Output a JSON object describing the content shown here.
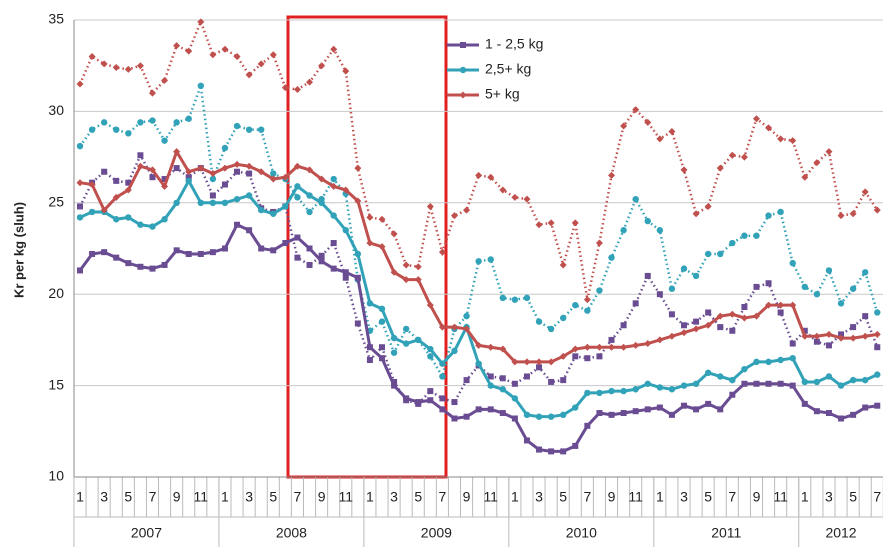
{
  "chart_data": {
    "type": "line",
    "y_label": "Kr per kg (sluh)",
    "categories": [
      "1",
      null,
      "3",
      null,
      "5",
      null,
      "7",
      null,
      "9",
      null,
      "11",
      null,
      "1",
      null,
      "3",
      null,
      "5",
      null,
      "7",
      null,
      "9",
      null,
      "11",
      null,
      "1",
      null,
      "3",
      null,
      "5",
      null,
      "7",
      null,
      "9",
      null,
      "11",
      null,
      "1",
      null,
      "3",
      null,
      "5",
      null,
      "7",
      null,
      "9",
      null,
      "11",
      null,
      "1",
      null,
      "3",
      null,
      "5",
      null,
      "7",
      null,
      "9",
      null,
      "11",
      null,
      "1",
      null,
      "3",
      null,
      "5",
      null,
      "7"
    ],
    "years": [
      "2007",
      "2008",
      "2009",
      "2010",
      "2011",
      "2012"
    ],
    "ylim": [
      10,
      35
    ],
    "yticks": [
      10,
      15,
      20,
      25,
      30,
      35
    ],
    "grid": true,
    "series": [
      {
        "color": "#6a4c93",
        "style": "dotted",
        "marker": "square",
        "values": [
          24.8,
          26.1,
          26.7,
          26.2,
          26.1,
          27.6,
          26.4,
          26.3,
          26.9,
          26.4,
          26.9,
          25.4,
          26.0,
          26.7,
          26.6,
          24.7,
          24.5,
          24.8,
          22.0,
          21.6,
          22.1,
          22.8,
          20.9,
          18.4,
          16.4,
          17.1,
          15.2,
          14.2,
          14.0,
          14.7,
          14.3,
          14.1,
          15.3,
          16.1,
          15.5,
          15.4,
          15.1,
          15.5,
          16.0,
          15.2,
          15.3,
          16.6,
          16.5,
          16.6,
          17.5,
          18.3,
          19.5,
          21.0,
          20.0,
          18.9,
          18.3,
          18.5,
          19.0,
          18.2,
          18.0,
          19.3,
          20.4,
          20.6,
          19.0,
          17.3,
          18.0,
          17.4,
          17.2,
          17.8,
          18.2,
          18.8,
          17.1
        ]
      },
      {
        "color": "#31a2b8",
        "style": "dotted",
        "marker": "circle",
        "values": [
          28.1,
          29.0,
          29.4,
          29.0,
          28.8,
          29.4,
          29.5,
          28.4,
          29.4,
          29.6,
          31.4,
          26.3,
          28.0,
          29.2,
          29.0,
          29.0,
          26.6,
          26.3,
          25.3,
          24.5,
          25.2,
          26.3,
          25.5,
          20.8,
          18.0,
          18.5,
          16.8,
          18.1,
          17.5,
          16.6,
          15.5,
          18.1,
          18.8,
          21.8,
          21.9,
          19.8,
          19.7,
          19.8,
          18.5,
          18.1,
          18.7,
          19.4,
          19.1,
          20.2,
          22.0,
          23.5,
          25.2,
          24.0,
          23.5,
          20.3,
          21.4,
          21.0,
          22.2,
          22.2,
          22.8,
          23.2,
          23.2,
          24.3,
          24.5,
          21.7,
          20.4,
          20.0,
          21.3,
          19.5,
          20.3,
          21.2,
          19.0
        ]
      },
      {
        "color": "#c0504d",
        "style": "dotted",
        "marker": "diamond",
        "values": [
          31.5,
          33.0,
          32.6,
          32.4,
          32.3,
          32.5,
          31.0,
          31.7,
          33.6,
          33.3,
          34.9,
          33.1,
          33.4,
          33.0,
          32.0,
          32.6,
          33.1,
          31.3,
          31.2,
          31.6,
          32.5,
          33.4,
          32.2,
          26.9,
          24.2,
          24.1,
          23.3,
          21.6,
          21.5,
          24.8,
          22.3,
          24.3,
          24.6,
          26.5,
          26.4,
          25.7,
          25.3,
          25.2,
          23.8,
          23.9,
          21.6,
          23.9,
          19.7,
          22.8,
          26.5,
          29.2,
          30.1,
          29.4,
          28.5,
          28.9,
          26.8,
          24.4,
          24.8,
          26.9,
          27.6,
          27.5,
          29.6,
          29.1,
          28.5,
          28.4,
          26.4,
          27.2,
          27.8,
          24.3,
          24.4,
          25.6,
          24.6
        ]
      },
      {
        "name": "1 - 2,5 kg",
        "color": "#6a4c93",
        "style": "solid",
        "marker": "square",
        "values": [
          21.3,
          22.2,
          22.3,
          22.0,
          21.7,
          21.5,
          21.4,
          21.6,
          22.4,
          22.2,
          22.2,
          22.3,
          22.5,
          23.8,
          23.5,
          22.5,
          22.4,
          22.8,
          23.1,
          22.5,
          21.8,
          21.4,
          21.2,
          20.9,
          17.1,
          16.5,
          15.0,
          14.3,
          14.1,
          14.2,
          13.7,
          13.2,
          13.3,
          13.7,
          13.7,
          13.5,
          13.2,
          12.0,
          11.5,
          11.4,
          11.4,
          11.7,
          12.8,
          13.5,
          13.4,
          13.5,
          13.6,
          13.7,
          13.8,
          13.4,
          13.9,
          13.7,
          14.0,
          13.7,
          14.5,
          15.1,
          15.1,
          15.1,
          15.1,
          15.0,
          14.0,
          13.6,
          13.5,
          13.2,
          13.4,
          13.8,
          13.9
        ]
      },
      {
        "name": "2,5+ kg",
        "color": "#31a2b8",
        "style": "solid",
        "marker": "circle",
        "values": [
          24.2,
          24.5,
          24.5,
          24.1,
          24.2,
          23.8,
          23.7,
          24.1,
          25.0,
          26.2,
          25.0,
          25.0,
          25.0,
          25.2,
          25.4,
          24.6,
          24.4,
          24.8,
          25.9,
          25.4,
          25.0,
          24.3,
          23.5,
          22.2,
          19.5,
          19.2,
          17.6,
          17.3,
          17.5,
          17.0,
          16.2,
          16.9,
          18.2,
          16.2,
          15.0,
          14.8,
          14.3,
          13.4,
          13.3,
          13.3,
          13.4,
          13.8,
          14.6,
          14.6,
          14.7,
          14.7,
          14.8,
          15.1,
          14.9,
          14.8,
          15.0,
          15.1,
          15.7,
          15.5,
          15.3,
          15.9,
          16.3,
          16.3,
          16.4,
          16.5,
          15.2,
          15.2,
          15.5,
          15.0,
          15.3,
          15.3,
          15.6
        ]
      },
      {
        "name": "5+ kg",
        "color": "#c0504d",
        "style": "solid",
        "marker": "diamond",
        "values": [
          26.1,
          26.0,
          24.6,
          25.3,
          25.7,
          27.0,
          26.8,
          25.9,
          27.8,
          26.7,
          26.9,
          26.6,
          26.9,
          27.1,
          27.0,
          26.7,
          26.3,
          26.4,
          27.0,
          26.8,
          26.3,
          25.9,
          25.7,
          25.1,
          22.8,
          22.6,
          21.2,
          20.8,
          20.8,
          19.4,
          18.2,
          18.2,
          18.1,
          17.2,
          17.1,
          17.0,
          16.3,
          16.3,
          16.3,
          16.3,
          16.6,
          17.0,
          17.1,
          17.1,
          17.1,
          17.1,
          17.2,
          17.3,
          17.5,
          17.7,
          17.9,
          18.1,
          18.3,
          18.8,
          18.9,
          18.7,
          18.8,
          19.4,
          19.4,
          19.4,
          17.7,
          17.7,
          17.8,
          17.6,
          17.6,
          17.7,
          17.8
        ]
      }
    ]
  }
}
